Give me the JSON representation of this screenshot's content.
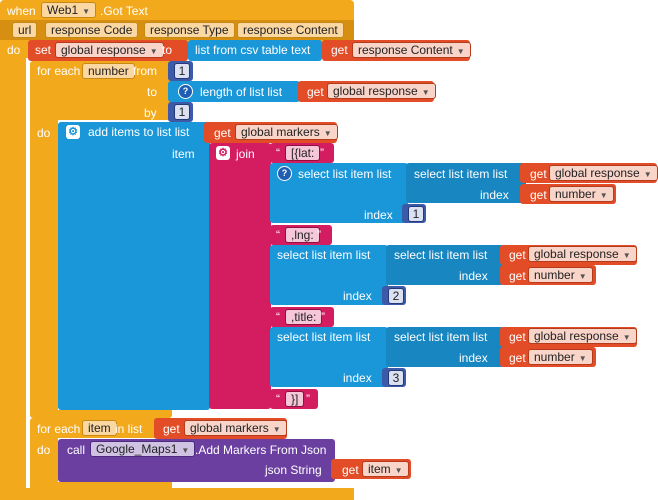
{
  "event": {
    "when": "when",
    "component": "Web1",
    "event_name": ".Got Text",
    "do": "do",
    "params": [
      "url",
      "response Code",
      "response Type",
      "response Content"
    ]
  },
  "set_block": {
    "set": "set",
    "var": "global response",
    "to": "to"
  },
  "csv": {
    "label": "list from csv table  text",
    "get": "get",
    "var": "response Content"
  },
  "for_range": {
    "label": "for each",
    "var": "number",
    "from": "from",
    "to": "to",
    "by": "by",
    "from_val": "1",
    "by_val": "1",
    "length_label": "length of list  list",
    "get": "get",
    "length_var": "global response",
    "do": "do"
  },
  "add_items": {
    "label": "add items to list  list",
    "get": "get",
    "list_var": "global markers",
    "item": "item"
  },
  "join": {
    "label": "join"
  },
  "strings": {
    "lat": "[{lat:",
    "lng": ",lng:",
    "title": ",title:",
    "end": "}]"
  },
  "select": {
    "select_label": "select list item  list",
    "index": "index",
    "get": "get",
    "list_var": "global response",
    "index_var": "number",
    "idx1": "1",
    "idx2": "2",
    "idx3": "3"
  },
  "for_list": {
    "label": "for each",
    "var": "item",
    "in_list": "in list",
    "get": "get",
    "list_var": "global markers",
    "do": "do"
  },
  "call": {
    "call": "call",
    "component": "Google_Maps1",
    "method": ".Add Markers From Json",
    "arg": "json String",
    "get": "get",
    "var": "item"
  },
  "colors": {
    "event": "#f3a91c",
    "variables": "#e24c27",
    "lists": "#1a97d8",
    "math": "#3d5aa9",
    "text": "#d41d61",
    "component": "#6b3fa0"
  }
}
